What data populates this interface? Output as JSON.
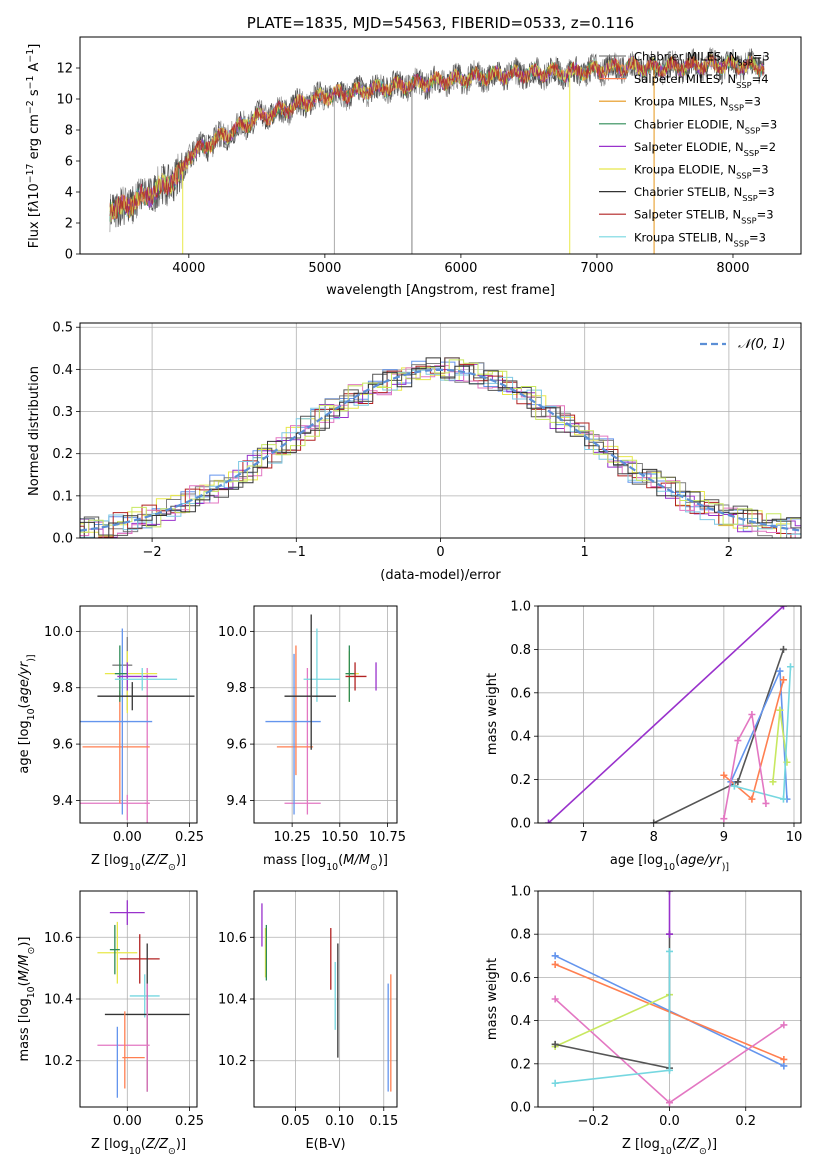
{
  "chart_data": [
    {
      "type": "line",
      "title": "PLATE=1835, MJD=54563, FIBERID=0533, z=0.116",
      "xlabel": "wavelength [Angstrom, rest frame]",
      "ylabel_parts": [
        "Flux [f",
        "λ",
        "10",
        "−17",
        " erg cm",
        "−2",
        " s",
        "−1",
        " A",
        "−1",
        "]"
      ],
      "xlim": [
        3200,
        8500
      ],
      "ylim": [
        0,
        14
      ],
      "xticks": [
        "4000",
        "5000",
        "6000",
        "7000",
        "8000"
      ],
      "yticks": [
        "0",
        "2",
        "4",
        "6",
        "8",
        "10",
        "12"
      ],
      "spectrum_shape": {
        "x": [
          3400,
          3500,
          3600,
          3700,
          3800,
          3900,
          3950,
          4000,
          4100,
          4200,
          4300,
          4400,
          4500,
          4600,
          4800,
          5000,
          5200,
          5400,
          5600,
          5800,
          6000,
          6200,
          6400,
          6600,
          6800,
          7000,
          7200,
          7400,
          7600,
          7800,
          8000,
          8200
        ],
        "y": [
          3.0,
          2.9,
          3.4,
          3.8,
          4.3,
          4.9,
          5.2,
          6.4,
          6.8,
          7.4,
          7.8,
          8.3,
          8.8,
          9.0,
          9.6,
          10.2,
          10.4,
          10.7,
          10.9,
          11.1,
          11.3,
          11.5,
          11.6,
          11.7,
          11.7,
          11.9,
          12.1,
          12.0,
          12.1,
          12.2,
          12.2,
          12.1
        ]
      },
      "legend_position": "upper right",
      "series": [
        {
          "name_parts": [
            "Chabrier MILES, N",
            "SSP",
            "=3"
          ],
          "color": "#808080"
        },
        {
          "name_parts": [
            "Salpeter MILES, N",
            "SSP",
            "=4"
          ],
          "color": "#ff7f50"
        },
        {
          "name_parts": [
            "Kroupa MILES, N",
            "SSP",
            "=3"
          ],
          "color": "#e69518"
        },
        {
          "name_parts": [
            "Chabrier ELODIE, N",
            "SSP",
            "=3"
          ],
          "color": "#2e8b57"
        },
        {
          "name_parts": [
            "Salpeter ELODIE, N",
            "SSP",
            "=2"
          ],
          "color": "#9932cc"
        },
        {
          "name_parts": [
            "Kroupa ELODIE, N",
            "SSP",
            "=3"
          ],
          "color": "#e8e84a"
        },
        {
          "name_parts": [
            "Chabrier STELIB, N",
            "SSP",
            "=3"
          ],
          "color": "#333333"
        },
        {
          "name_parts": [
            "Salpeter STELIB, N",
            "SSP",
            "=3"
          ],
          "color": "#b22222"
        },
        {
          "name_parts": [
            "Kroupa STELIB, N",
            "SSP",
            "=3"
          ],
          "color": "#76d7e0"
        }
      ]
    },
    {
      "type": "histogram",
      "xlabel": "(data-model)/error",
      "ylabel": "Normed distribution",
      "xlim": [
        -2.5,
        2.5
      ],
      "ylim": [
        0,
        0.51
      ],
      "xticks": [
        "−2",
        "−1",
        "0",
        "1",
        "2"
      ],
      "yticks": [
        "0.0",
        "0.1",
        "0.2",
        "0.3",
        "0.4",
        "0.5"
      ],
      "bin_width": 0.1,
      "hist_colors": [
        "#6495ed",
        "#e8e84a",
        "#9932cc",
        "#808080",
        "#b22222",
        "#e377c2",
        "#7ec8e3",
        "#555555",
        "#c8e860",
        "#333333"
      ],
      "reference": {
        "name": "𝒩(0, 1)",
        "color": "#5b8fd6",
        "style": "dashed"
      },
      "legend_position": "upper right"
    },
    {
      "type": "errorbar",
      "xlabel_parts": [
        "Z [log",
        "10",
        "(",
        "Z/Z",
        "⊙",
        ")]"
      ],
      "ylabel_parts": [
        "age  [log",
        "10",
        "(",
        "age/yr",
        ")]"
      ],
      "xlim": [
        -0.19,
        0.28
      ],
      "ylim": [
        9.32,
        10.09
      ],
      "xticks": [
        "0.00",
        "0.25"
      ],
      "yticks": [
        "9.4",
        "9.6",
        "9.8",
        "10.0"
      ],
      "points": [
        {
          "x": 0.0,
          "y": 9.88,
          "xerr": [
            0.06,
            0.02
          ],
          "yerr": [
            0.16,
            0.1
          ],
          "color": "#808080"
        },
        {
          "x": 0.0,
          "y": 9.39,
          "xerr": [
            0.19,
            0.09
          ],
          "yerr": [
            0.06,
            0.03
          ],
          "color": "#e377c2"
        },
        {
          "x": 0.08,
          "y": 9.39,
          "xerr": [
            0.01,
            0.01
          ],
          "yerr": [
            0.09,
            0.48
          ],
          "color": "#e377c2"
        },
        {
          "x": -0.03,
          "y": 9.59,
          "xerr": [
            0.15,
            0.12
          ],
          "yerr": [
            0.2,
            0.2
          ],
          "color": "#ff7f50"
        },
        {
          "x": -0.02,
          "y": 9.68,
          "xerr": [
            0.17,
            0.12
          ],
          "yerr": [
            0.33,
            0.33
          ],
          "color": "#6495ed"
        },
        {
          "x": 0.0,
          "y": 9.85,
          "xerr": [
            0.09,
            0.12
          ],
          "yerr": [
            0.14,
            0.08
          ],
          "color": "#e8e84a"
        },
        {
          "x": -0.03,
          "y": 9.85,
          "xerr": [
            0.02,
            0.03
          ],
          "yerr": [
            0.1,
            0.1
          ],
          "color": "#2e8b57"
        },
        {
          "x": 0.0,
          "y": 9.84,
          "xerr": [
            0.04,
            0.12
          ],
          "yerr": [
            0.05,
            0.05
          ],
          "color": "#9932cc"
        },
        {
          "x": 0.06,
          "y": 9.83,
          "xerr": [
            0.11,
            0.14
          ],
          "yerr": [
            0.04,
            0.04
          ],
          "color": "#76d7e0"
        },
        {
          "x": 0.02,
          "y": 9.77,
          "xerr": [
            0.14,
            0.25
          ],
          "yerr": [
            0.05,
            0.05
          ],
          "color": "#333333"
        }
      ]
    },
    {
      "type": "errorbar",
      "xlabel_parts": [
        "mass [log",
        "10",
        "(",
        "M/M",
        "⊙",
        ")]"
      ],
      "xlim": [
        10.05,
        10.8
      ],
      "ylim": [
        9.32,
        10.09
      ],
      "xticks": [
        "10.25",
        "10.50",
        "10.75"
      ],
      "yticks": [
        "9.4",
        "9.6",
        "9.8",
        "10.0"
      ],
      "points": [
        {
          "x": 10.33,
          "y": 9.39,
          "xerr": [
            0.12,
            0.07
          ],
          "yerr": [
            0.04,
            0.48
          ],
          "color": "#e377c2"
        },
        {
          "x": 10.27,
          "y": 9.59,
          "xerr": [
            0.1,
            0.09
          ],
          "yerr": [
            0.1,
            0.36
          ],
          "color": "#ff7f50"
        },
        {
          "x": 10.26,
          "y": 9.68,
          "xerr": [
            0.15,
            0.14
          ],
          "yerr": [
            0.33,
            0.24
          ],
          "color": "#6495ed"
        },
        {
          "x": 10.38,
          "y": 9.83,
          "xerr": [
            0.07,
            0.12
          ],
          "yerr": [
            0.08,
            0.18
          ],
          "color": "#76d7e0"
        },
        {
          "x": 10.35,
          "y": 9.77,
          "xerr": [
            0.14,
            0.13
          ],
          "yerr": [
            0.19,
            0.29
          ],
          "color": "#333333"
        },
        {
          "x": 10.55,
          "y": 9.85,
          "xerr": [
            0.02,
            0.05
          ],
          "yerr": [
            0.1,
            0.08
          ],
          "color": "#e8e84a"
        },
        {
          "x": 10.55,
          "y": 9.85,
          "xerr": [
            0.02,
            0.03
          ],
          "yerr": [
            0.1,
            0.1
          ],
          "color": "#2e8b57"
        },
        {
          "x": 10.58,
          "y": 9.84,
          "xerr": [
            0.05,
            0.06
          ],
          "yerr": [
            0.05,
            0.05
          ],
          "color": "#b22222"
        },
        {
          "x": 10.69,
          "y": 9.84,
          "xerr": [
            0.0,
            0.0
          ],
          "yerr": [
            0.05,
            0.05
          ],
          "color": "#9932cc"
        }
      ]
    },
    {
      "type": "line",
      "xlabel_parts": [
        "age  [log",
        "10",
        "(",
        "age/yr",
        ")]"
      ],
      "ylabel": "mass weight",
      "xlim": [
        6.35,
        10.1
      ],
      "ylim": [
        0,
        1
      ],
      "xticks": [
        "7",
        "8",
        "9",
        "10"
      ],
      "yticks": [
        "0.0",
        "0.2",
        "0.4",
        "0.6",
        "0.8",
        "1.0"
      ],
      "series": [
        {
          "color": "#9932cc",
          "x": [
            6.5,
            9.85
          ],
          "y": [
            0.0,
            1.0
          ]
        },
        {
          "color": "#555555",
          "x": [
            8.0,
            9.2,
            9.85
          ],
          "y": [
            0.0,
            0.19,
            0.8
          ]
        },
        {
          "color": "#6495ed",
          "x": [
            9.1,
            9.8,
            9.9
          ],
          "y": [
            0.19,
            0.7,
            0.11
          ]
        },
        {
          "color": "#ff7f50",
          "x": [
            9.0,
            9.4,
            9.85
          ],
          "y": [
            0.22,
            0.11,
            0.66
          ]
        },
        {
          "color": "#c8e860",
          "x": [
            9.7,
            9.8,
            9.9
          ],
          "y": [
            0.19,
            0.52,
            0.28
          ]
        },
        {
          "color": "#76d7e0",
          "x": [
            9.15,
            9.85,
            9.95
          ],
          "y": [
            0.17,
            0.11,
            0.72
          ]
        },
        {
          "color": "#e377c2",
          "x": [
            9.0,
            9.2,
            9.4,
            9.6
          ],
          "y": [
            0.02,
            0.38,
            0.5,
            0.09
          ]
        }
      ]
    },
    {
      "type": "errorbar",
      "xlabel_parts": [
        "Z [log",
        "10",
        "(",
        "Z/Z",
        "⊙",
        ")]"
      ],
      "ylabel_parts": [
        "mass [log",
        "10",
        "(",
        "M/M",
        "⊙",
        ")]"
      ],
      "xlim": [
        -0.19,
        0.28
      ],
      "ylim": [
        10.05,
        10.75
      ],
      "xticks": [
        "0.00",
        "0.25"
      ],
      "yticks": [
        "10.2",
        "10.4",
        "10.6"
      ],
      "points": [
        {
          "x": 0.0,
          "y": 10.68,
          "xerr": [
            0.07,
            0.07
          ],
          "yerr": [
            0.04,
            0.04
          ],
          "color": "#9932cc"
        },
        {
          "x": -0.04,
          "y": 10.55,
          "xerr": [
            0.08,
            0.08
          ],
          "yerr": [
            0.1,
            0.1
          ],
          "color": "#e8e84a"
        },
        {
          "x": -0.05,
          "y": 10.56,
          "xerr": [
            0.02,
            0.02
          ],
          "yerr": [
            0.08,
            0.08
          ],
          "color": "#2e8b57"
        },
        {
          "x": 0.05,
          "y": 10.53,
          "xerr": [
            0.08,
            0.08
          ],
          "yerr": [
            0.08,
            0.08
          ],
          "color": "#b22222"
        },
        {
          "x": 0.07,
          "y": 10.41,
          "xerr": [
            0.06,
            0.06
          ],
          "yerr": [
            0.07,
            0.07
          ],
          "color": "#76d7e0"
        },
        {
          "x": 0.08,
          "y": 10.35,
          "xerr": [
            0.17,
            0.17
          ],
          "yerr": [
            0.25,
            0.23
          ],
          "color": "#333333"
        },
        {
          "x": 0.08,
          "y": 10.25,
          "xerr": [
            0.2,
            0.01
          ],
          "yerr": [
            0.15,
            0.2
          ],
          "color": "#e377c2"
        },
        {
          "x": -0.04,
          "y": 10.21,
          "xerr": [
            0.0,
            0.0
          ],
          "yerr": [
            0.13,
            0.1
          ],
          "color": "#6495ed"
        },
        {
          "x": -0.01,
          "y": 10.21,
          "xerr": [
            0.01,
            0.08
          ],
          "yerr": [
            0.1,
            0.15
          ],
          "color": "#ff7f50"
        }
      ]
    },
    {
      "type": "errorbar",
      "xlabel": "E(B-V)",
      "xlim": [
        0.003,
        0.165
      ],
      "ylim": [
        10.05,
        10.75
      ],
      "xticks": [
        "0.05",
        "0.10",
        "0.15"
      ],
      "yticks": [
        "10.2",
        "10.4",
        "10.6"
      ],
      "points": [
        {
          "x": 0.012,
          "y": 10.64,
          "xerr": [
            0,
            0
          ],
          "yerr": [
            0.07,
            0.07
          ],
          "color": "#9932cc"
        },
        {
          "x": 0.016,
          "y": 10.55,
          "xerr": [
            0,
            0
          ],
          "yerr": [
            0.08,
            0.08
          ],
          "color": "#e8e84a"
        },
        {
          "x": 0.017,
          "y": 10.55,
          "xerr": [
            0,
            0
          ],
          "yerr": [
            0.09,
            0.09
          ],
          "color": "#2e8b57"
        },
        {
          "x": 0.09,
          "y": 10.53,
          "xerr": [
            0,
            0
          ],
          "yerr": [
            0.1,
            0.1
          ],
          "color": "#b22222"
        },
        {
          "x": 0.095,
          "y": 10.41,
          "xerr": [
            0,
            0
          ],
          "yerr": [
            0.11,
            0.11
          ],
          "color": "#76d7e0"
        },
        {
          "x": 0.098,
          "y": 10.38,
          "xerr": [
            0,
            0
          ],
          "yerr": [
            0.17,
            0.2
          ],
          "color": "#333333"
        },
        {
          "x": 0.155,
          "y": 10.25,
          "xerr": [
            0,
            0
          ],
          "yerr": [
            0.15,
            0.2
          ],
          "color": "#6495ed"
        },
        {
          "x": 0.158,
          "y": 10.28,
          "xerr": [
            0,
            0
          ],
          "yerr": [
            0.18,
            0.2
          ],
          "color": "#ff7f50"
        }
      ]
    },
    {
      "type": "line",
      "xlabel_parts": [
        "Z [log",
        "10",
        "(",
        "Z/Z",
        "⊙",
        ")]"
      ],
      "ylabel": "mass weight",
      "xlim": [
        -0.345,
        0.345
      ],
      "ylim": [
        0,
        1
      ],
      "xticks": [
        "−0.2",
        "0.0",
        "0.2"
      ],
      "yticks": [
        "0.0",
        "0.2",
        "0.4",
        "0.6",
        "0.8",
        "1.0"
      ],
      "series": [
        {
          "color": "#6495ed",
          "x": [
            -0.3,
            0.3
          ],
          "y": [
            0.7,
            0.19
          ]
        },
        {
          "color": "#ff7f50",
          "x": [
            -0.3,
            0.3
          ],
          "y": [
            0.66,
            0.22
          ]
        },
        {
          "color": "#e377c2",
          "x": [
            -0.3,
            0.0,
            0.3
          ],
          "y": [
            0.5,
            0.02,
            0.38
          ]
        },
        {
          "color": "#c8e860",
          "x": [
            -0.3,
            0.0
          ],
          "y": [
            0.28,
            0.52
          ]
        },
        {
          "color": "#555555",
          "x": [
            -0.3,
            0.0,
            0.0
          ],
          "y": [
            0.29,
            0.18,
            0.8
          ]
        },
        {
          "color": "#76d7e0",
          "x": [
            -0.3,
            0.0,
            0.0
          ],
          "y": [
            0.11,
            0.17,
            0.72
          ]
        },
        {
          "color": "#9932cc",
          "x": [
            0.0,
            0.0
          ],
          "y": [
            0.8,
            1.0
          ]
        }
      ]
    }
  ]
}
